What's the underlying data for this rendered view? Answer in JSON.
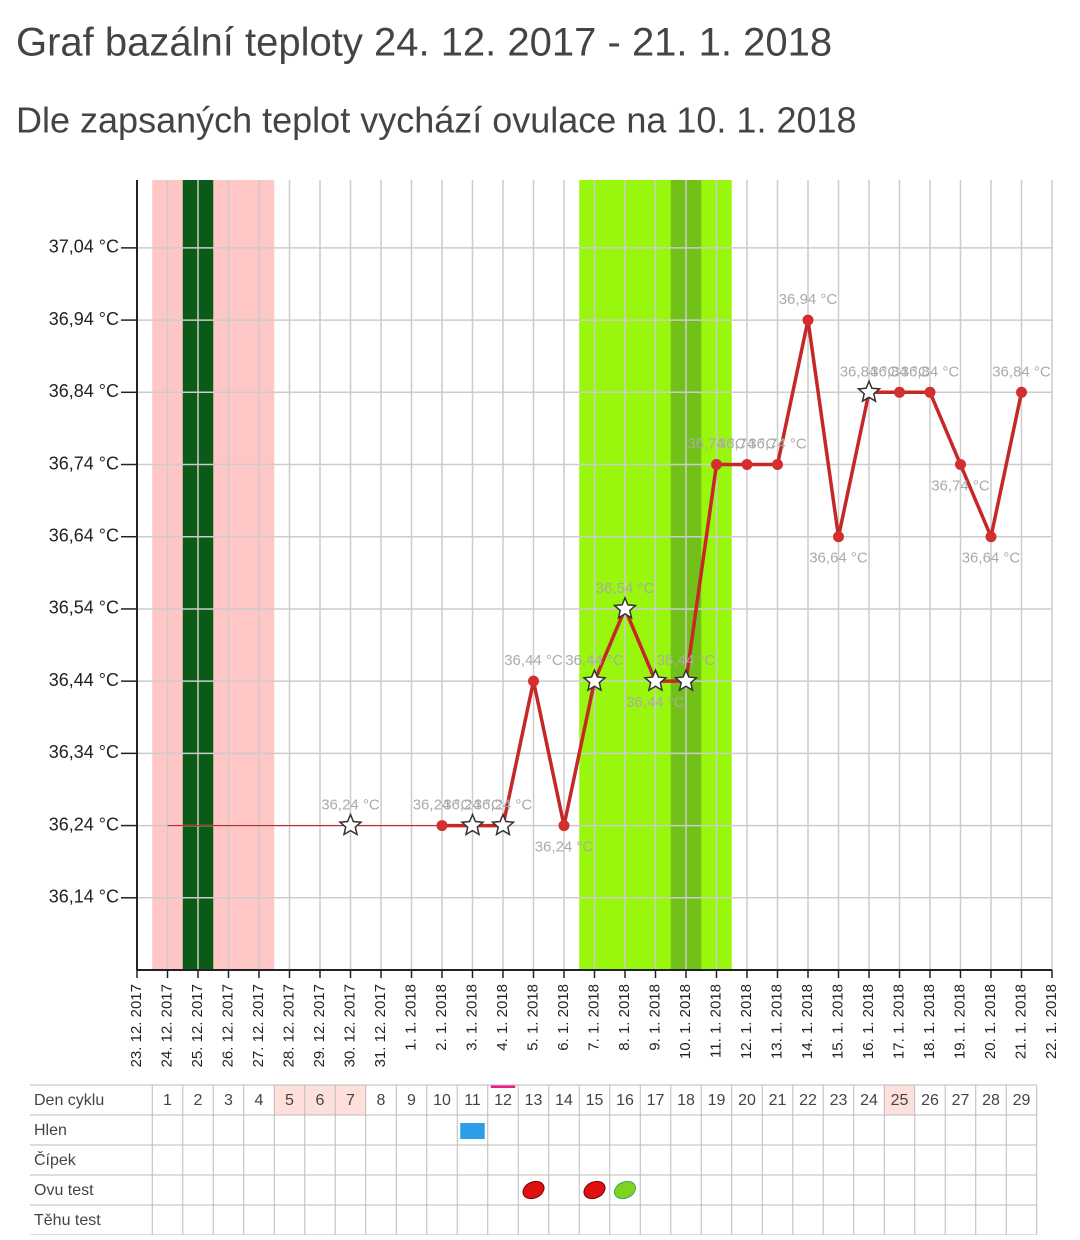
{
  "chart_data": {
    "type": "line",
    "title": "Graf bazální teploty 24. 12. 2017 - 21. 1. 2018",
    "subtitle": "Dle zapsaných teplot vychází ovulace na 10. 1. 2018",
    "categories": [
      "23. 12. 2017",
      "24. 12. 2017",
      "25. 12. 2017",
      "26. 12. 2017",
      "27. 12. 2017",
      "28. 12. 2017",
      "29. 12. 2017",
      "30. 12. 2017",
      "31. 12. 2017",
      "1. 1. 2018",
      "2. 1. 2018",
      "3. 1. 2018",
      "4. 1. 2018",
      "5. 1. 2018",
      "6. 1. 2018",
      "7. 1. 2018",
      "8. 1. 2018",
      "9. 1. 2018",
      "10. 1. 2018",
      "11. 1. 2018",
      "12. 1. 2018",
      "13. 1. 2018",
      "14. 1. 2018",
      "15. 1. 2018",
      "16. 1. 2018",
      "17. 1. 2018",
      "18. 1. 2018",
      "19. 1. 2018",
      "20. 1. 2018",
      "21. 1. 2018",
      "22. 1. 2018"
    ],
    "series": [
      {
        "color": "#c62828",
        "values": [
          null,
          null,
          null,
          null,
          null,
          null,
          null,
          36.24,
          null,
          null,
          36.24,
          36.24,
          36.24,
          36.44,
          36.24,
          36.44,
          36.54,
          36.44,
          36.44,
          36.74,
          36.74,
          36.74,
          36.94,
          36.64,
          36.84,
          36.84,
          36.84,
          36.74,
          36.64,
          36.84,
          null
        ],
        "value_labels": [
          null,
          null,
          null,
          null,
          null,
          null,
          null,
          "36,24 °C",
          null,
          null,
          "36,24 °C",
          "36,24 °C",
          "36,24 °C",
          "36,44 °C",
          "36,24 °C",
          "36,44 °C",
          "36,54 °C",
          "36,44 °C",
          "36,44 °C",
          "36,74 °C",
          "36,74 °C",
          "36,74 °C",
          "36,94 °C",
          "36,64 °C",
          "36,84 °C",
          "36,84 °C",
          "36,84 °C",
          "36,74 °C",
          "36,64 °C",
          "36,84 °C",
          null
        ],
        "markers": [
          null,
          null,
          null,
          null,
          null,
          null,
          null,
          "star",
          null,
          null,
          "dot",
          "star",
          "star",
          "dot",
          "dot",
          "star",
          "star",
          "star",
          "star",
          "dot",
          "dot",
          "dot",
          "dot",
          "dot",
          "star",
          "dot",
          "dot",
          "dot",
          "dot",
          "dot",
          null
        ]
      }
    ],
    "ylim": [
      36.04,
      37.134
    ],
    "yticks": [
      {
        "value": 36.14,
        "label": "36,14 °C"
      },
      {
        "value": 36.24,
        "label": "36,24 °C"
      },
      {
        "value": 36.34,
        "label": "36,34 °C"
      },
      {
        "value": 36.44,
        "label": "36,44 °C"
      },
      {
        "value": 36.54,
        "label": "36,54 °C"
      },
      {
        "value": 36.64,
        "label": "36,64 °C"
      },
      {
        "value": 36.74,
        "label": "36,74 °C"
      },
      {
        "value": 36.84,
        "label": "36,84 °C"
      },
      {
        "value": 36.94,
        "label": "36,94 °C"
      },
      {
        "value": 37.04,
        "label": "37,04 °C"
      }
    ],
    "grid": true,
    "bands": [
      {
        "start_day": 1,
        "end_day": 4,
        "color": "#ffc6c6"
      },
      {
        "start_day": 2,
        "end_day": 2,
        "color": "#0b5a17"
      },
      {
        "start_day": 15,
        "end_day": 19,
        "color": "#99f60d"
      },
      {
        "start_day": 18,
        "end_day": 18,
        "color": "#72c118"
      }
    ]
  },
  "table": {
    "rows": [
      "Den cyklu",
      "Hlen",
      "Čípek",
      "Ovu test",
      "Těhu test"
    ],
    "days": [
      1,
      2,
      3,
      4,
      5,
      6,
      7,
      8,
      9,
      10,
      11,
      12,
      13,
      14,
      15,
      16,
      17,
      18,
      19,
      20,
      21,
      22,
      23,
      24,
      25,
      26,
      27,
      28,
      29
    ],
    "highlight_days": [
      5,
      6,
      7,
      25
    ],
    "today": 12,
    "hlen_days": [
      11
    ],
    "ovu_red_days": [
      13,
      15
    ],
    "ovu_green_days": [
      16
    ]
  }
}
